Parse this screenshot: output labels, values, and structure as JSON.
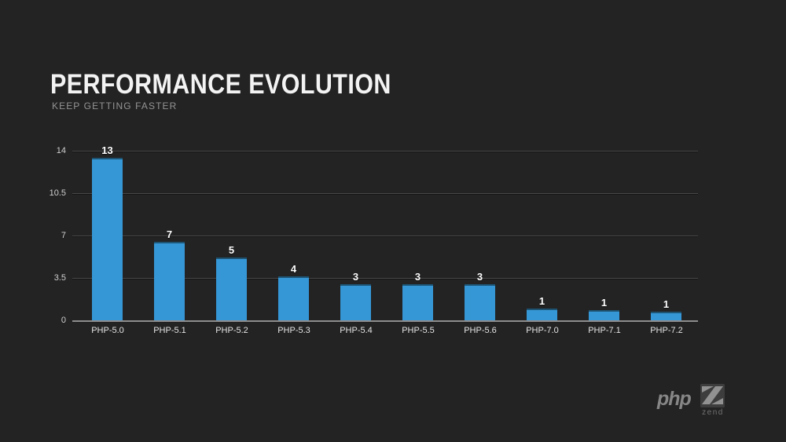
{
  "slide": {
    "title": "PERFORMANCE EVOLUTION",
    "subtitle": "KEEP GETTING FASTER",
    "background_color": "#232323"
  },
  "chart_data": {
    "type": "bar",
    "title": "PERFORMANCE EVOLUTION",
    "subtitle": "KEEP GETTING FASTER",
    "categories": [
      "PHP-5.0",
      "PHP-5.1",
      "PHP-5.2",
      "PHP-5.3",
      "PHP-5.4",
      "PHP-5.5",
      "PHP-5.6",
      "PHP-7.0",
      "PHP-7.1",
      "PHP-7.2"
    ],
    "values": [
      13,
      7,
      5,
      4,
      3,
      3,
      3,
      1,
      1,
      1
    ],
    "bar_units_estimated": [
      13.4,
      6.5,
      5.2,
      3.65,
      3.0,
      3.0,
      2.95,
      0.97,
      0.82,
      0.7
    ],
    "xlabel": "",
    "ylabel": "",
    "ylim": [
      0,
      14
    ],
    "yticks": [
      0,
      3.5,
      7,
      10.5,
      14
    ],
    "grid": "horizontal",
    "legend": "none",
    "bar_color": "#3697d6",
    "bar_cap_color": "#1e5474",
    "gridline_color": "#484848",
    "baseline_color": "#8d8d8d"
  },
  "footer": {
    "php_logo_text": "php",
    "zend_logo_text": "zend"
  }
}
